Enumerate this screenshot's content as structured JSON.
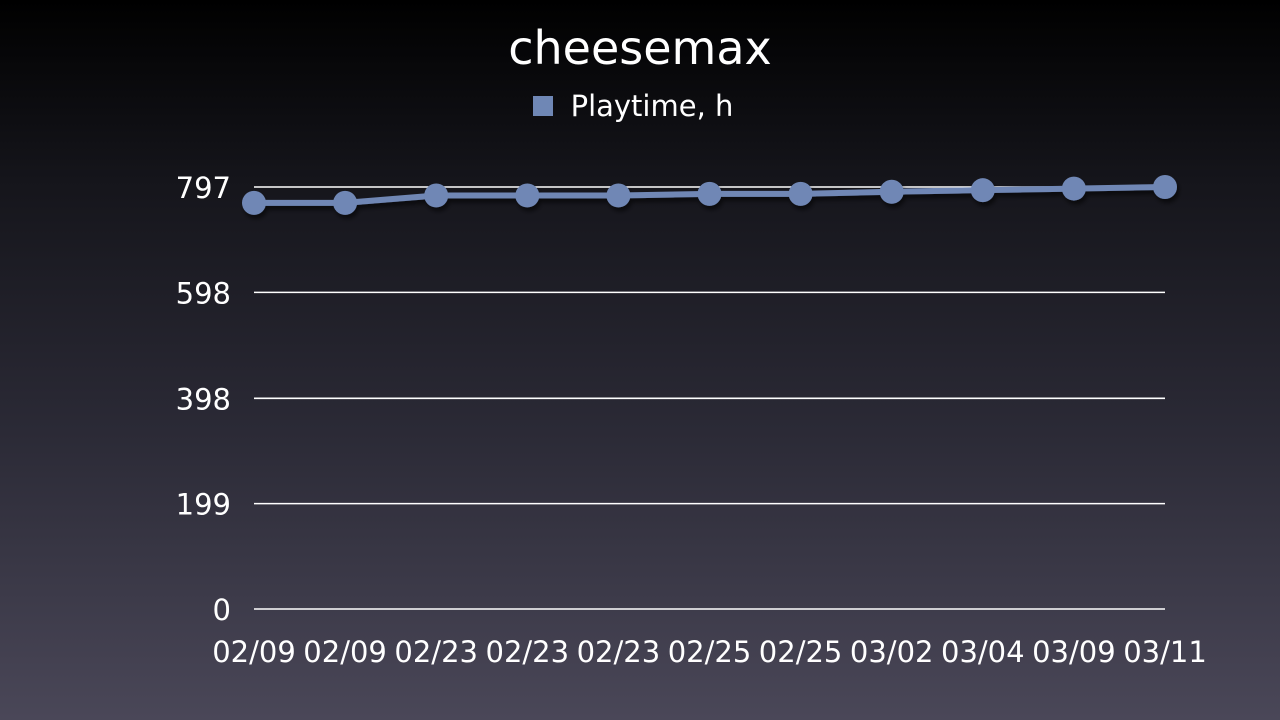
{
  "chart_data": {
    "type": "line",
    "title": "cheesemax",
    "xlabel": "",
    "ylabel": "",
    "x": [
      "02/09",
      "02/09",
      "02/23",
      "02/23",
      "02/23",
      "02/25",
      "02/25",
      "03/02",
      "03/04",
      "03/09",
      "03/11"
    ],
    "series": [
      {
        "name": "Playtime, h",
        "values": [
          767,
          767,
          781,
          781,
          781,
          784,
          784,
          788,
          791,
          794,
          797
        ]
      }
    ],
    "ylim": [
      0,
      797
    ],
    "yticks": [
      0,
      199,
      398,
      598,
      797
    ],
    "grid": true,
    "legend_position": "top-center",
    "colors": {
      "series": "#6f87b5",
      "grid": "#ffffff"
    }
  }
}
